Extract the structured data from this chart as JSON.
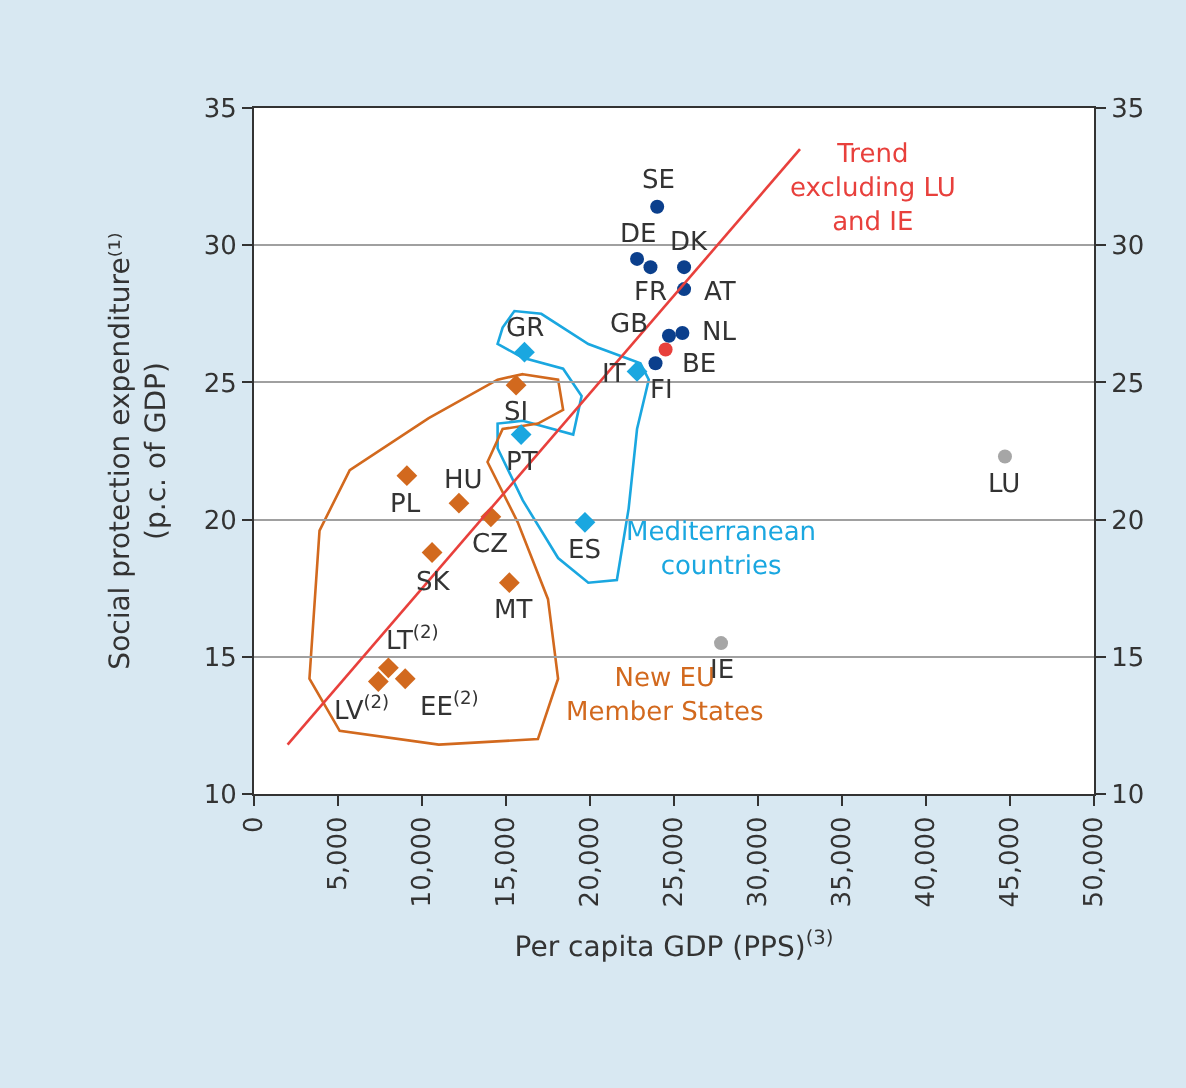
{
  "chart_data": {
    "type": "scatter",
    "xlabel": "Per capita GDP (PPS)$^{(3)}$",
    "ylabel": "Social protection expenditure⁽¹⁾\n(p.c. of GDP)",
    "xlim": [
      0,
      50000
    ],
    "xticks": [
      0,
      {
        "value": 5000,
        "label": "5,000"
      },
      {
        "value": 10000,
        "label": "10,000"
      },
      {
        "value": 15000,
        "label": "15,000"
      },
      {
        "value": 20000,
        "label": "20,000"
      },
      {
        "value": 25000,
        "label": "25,000"
      },
      {
        "value": 30000,
        "label": "30,000"
      },
      {
        "value": 35000,
        "label": "35,000"
      },
      {
        "value": 40000,
        "label": "40,000"
      },
      {
        "value": 45000,
        "label": "45,000"
      },
      {
        "value": 50000,
        "label": "50,000"
      }
    ],
    "ylim": [
      10,
      35
    ],
    "yticks": [
      10,
      15,
      20,
      25,
      30,
      35
    ],
    "y2lim": [
      10,
      35
    ],
    "y2ticks": [
      10,
      15,
      20,
      25,
      30,
      35
    ],
    "grid": "y",
    "legend": false,
    "series": [
      {
        "color": "#0b3f8c",
        "marker": "circle",
        "x": [
          24000,
          22800,
          23600,
          25600,
          25600,
          25500,
          24700,
          23900
        ],
        "values": [
          31.4,
          29.5,
          29.2,
          29.2,
          28.4,
          26.8,
          26.7,
          25.7
        ]
      },
      {
        "color": "#e8403c",
        "marker": "circle",
        "x": [
          24500
        ],
        "values": [
          26.2
        ]
      },
      {
        "name": "Mediterranean\ncountries",
        "color": "#1aa7e0",
        "marker": "diamond",
        "x": [
          16100,
          22800,
          15900,
          19700
        ],
        "values": [
          26.1,
          25.4,
          23.1,
          19.9
        ]
      },
      {
        "name": "New EU\nMember States",
        "color": "#d2691e",
        "marker": "diamond",
        "x": [
          15600,
          9100,
          12200,
          14100,
          10600,
          15200,
          8000,
          7400,
          9000
        ],
        "values": [
          24.9,
          21.6,
          20.6,
          20.1,
          18.8,
          17.7,
          14.6,
          14.1,
          14.2
        ]
      },
      {
        "color": "#a6a6a6",
        "marker": "circle",
        "x": [
          44700,
          27800
        ],
        "values": [
          22.3,
          15.5
        ]
      },
      {
        "type": "line",
        "name": "Trend\nexcluding LU\nand IE",
        "color": "#e8403c",
        "marker": "none",
        "x": [
          2000,
          32500
        ],
        "values": [
          11.8,
          33.5
        ]
      }
    ],
    "annotations": [
      {
        "text": "SE",
        "x": 24000,
        "y": 31.4
      },
      {
        "text": "DE",
        "x": 22800,
        "y": 29.5
      },
      {
        "text": "DK",
        "x": 25600,
        "y": 29.2
      },
      {
        "text": "FR",
        "x": 23600,
        "y": 29.2
      },
      {
        "text": "AT",
        "x": 25600,
        "y": 28.4
      },
      {
        "text": "GB",
        "x": 24700,
        "y": 26.7
      },
      {
        "text": "NL",
        "x": 25500,
        "y": 26.8
      },
      {
        "text": "BE",
        "x": 24500,
        "y": 26.2
      },
      {
        "text": "FI",
        "x": 23900,
        "y": 25.7
      },
      {
        "text": "IT",
        "x": 22800,
        "y": 25.4
      },
      {
        "text": "GR",
        "x": 16100,
        "y": 26.1
      },
      {
        "text": "SI",
        "x": 15600,
        "y": 24.9
      },
      {
        "text": "PT",
        "x": 15900,
        "y": 23.1
      },
      {
        "text": "PL",
        "x": 9100,
        "y": 21.6
      },
      {
        "text": "HU",
        "x": 12200,
        "y": 20.6
      },
      {
        "text": "CZ",
        "x": 14100,
        "y": 20.1
      },
      {
        "text": "SK",
        "x": 10600,
        "y": 18.8
      },
      {
        "text": "MT",
        "x": 15200,
        "y": 17.7
      },
      {
        "text": "ES",
        "x": 19700,
        "y": 19.9
      },
      {
        "text": "LT$^{(2)}$",
        "x": 8000,
        "y": 14.6
      },
      {
        "text": "LV$^{(2)}$",
        "x": 7400,
        "y": 14.1
      },
      {
        "text": "EE$^{(2)}$",
        "x": 9000,
        "y": 14.2
      },
      {
        "text": "LU",
        "x": 44700,
        "y": 22.3
      },
      {
        "text": "IE",
        "x": 27800,
        "y": 15.5
      }
    ]
  }
}
